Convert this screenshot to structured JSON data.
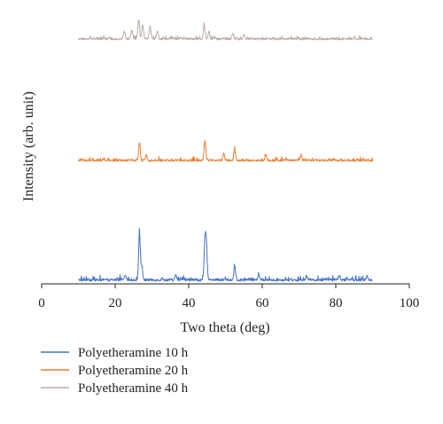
{
  "chart_data": {
    "type": "line",
    "title": "",
    "xlabel": "Two theta (deg)",
    "ylabel": "Intensity (arb. unit)",
    "xlim": [
      0,
      100
    ],
    "x_ticks": [
      "0",
      "20",
      "40",
      "60",
      "80",
      "100"
    ],
    "y_ticks": [],
    "grid": false,
    "legend_position": "bottom-left",
    "stacked_offset": true,
    "x_range": [
      10,
      90
    ],
    "series": [
      {
        "name": "Polyetheramine 10 h",
        "color": "#4472c4",
        "offset": 0,
        "peaks": [
          {
            "x": 22.8,
            "y": 6
          },
          {
            "x": 26.6,
            "y": 53
          },
          {
            "x": 27.2,
            "y": 16
          },
          {
            "x": 36.5,
            "y": 5
          },
          {
            "x": 44.4,
            "y": 42
          },
          {
            "x": 44.8,
            "y": 40
          },
          {
            "x": 52.5,
            "y": 16
          },
          {
            "x": 59.0,
            "y": 6
          },
          {
            "x": 72.0,
            "y": 5
          },
          {
            "x": 81.0,
            "y": 5
          },
          {
            "x": 88.5,
            "y": 5
          }
        ],
        "noise": 5
      },
      {
        "name": "Polyetheramine 20 h",
        "color": "#ed7d31",
        "offset": 135,
        "peaks": [
          {
            "x": 26.6,
            "y": 20
          },
          {
            "x": 28.5,
            "y": 7
          },
          {
            "x": 44.4,
            "y": 22
          },
          {
            "x": 49.5,
            "y": 8
          },
          {
            "x": 52.5,
            "y": 12
          },
          {
            "x": 61.0,
            "y": 6
          },
          {
            "x": 70.5,
            "y": 5
          }
        ],
        "noise": 4
      },
      {
        "name": "Polyetheramine 40 h",
        "color": "#b8aba6",
        "offset": 272,
        "peaks": [
          {
            "x": 22.5,
            "y": 9
          },
          {
            "x": 24.5,
            "y": 10
          },
          {
            "x": 26.4,
            "y": 22
          },
          {
            "x": 27.5,
            "y": 16
          },
          {
            "x": 29.5,
            "y": 14
          },
          {
            "x": 31.5,
            "y": 9
          },
          {
            "x": 44.2,
            "y": 15
          },
          {
            "x": 45.5,
            "y": 8
          },
          {
            "x": 52.0,
            "y": 7
          },
          {
            "x": 55.0,
            "y": 5
          }
        ],
        "noise": 4
      }
    ]
  }
}
